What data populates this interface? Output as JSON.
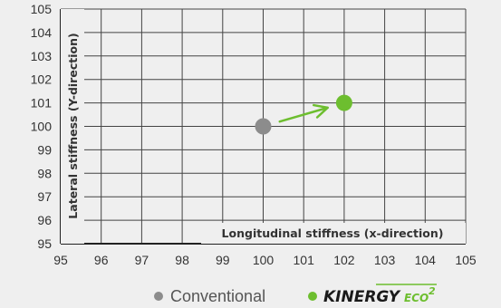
{
  "chart_data": {
    "type": "scatter",
    "xlabel": "Longitudinal stiffness (x-direction)",
    "ylabel": "Lateral stiffness (Y-direction)",
    "xlim": [
      95,
      105
    ],
    "ylim": [
      95,
      105
    ],
    "x_ticks": [
      "95",
      "96",
      "97",
      "98",
      "99",
      "100",
      "101",
      "102",
      "103",
      "104",
      "105"
    ],
    "y_ticks": [
      "95",
      "96",
      "97",
      "98",
      "99",
      "100",
      "101",
      "102",
      "103",
      "104",
      "105"
    ],
    "grid": true,
    "series": [
      {
        "name": "Conventional",
        "color": "#8c8c8c",
        "points": [
          {
            "x": 100,
            "y": 100
          }
        ]
      },
      {
        "name": "KINERGY ECO²",
        "color": "#6dbe2f",
        "points": [
          {
            "x": 102,
            "y": 101
          }
        ]
      }
    ],
    "arrow": {
      "from": {
        "x": 100,
        "y": 100
      },
      "to": {
        "x": 102,
        "y": 101
      }
    },
    "legend_position": "bottom-right"
  },
  "legend": {
    "conventional_label": "Conventional",
    "brand_main": "KINERGY",
    "brand_sub": "ECO",
    "brand_sup": "2"
  },
  "colors": {
    "conventional": "#8c8c8c",
    "kinergy": "#6dbe2f",
    "grid": "#444444",
    "background": "#efefef"
  }
}
